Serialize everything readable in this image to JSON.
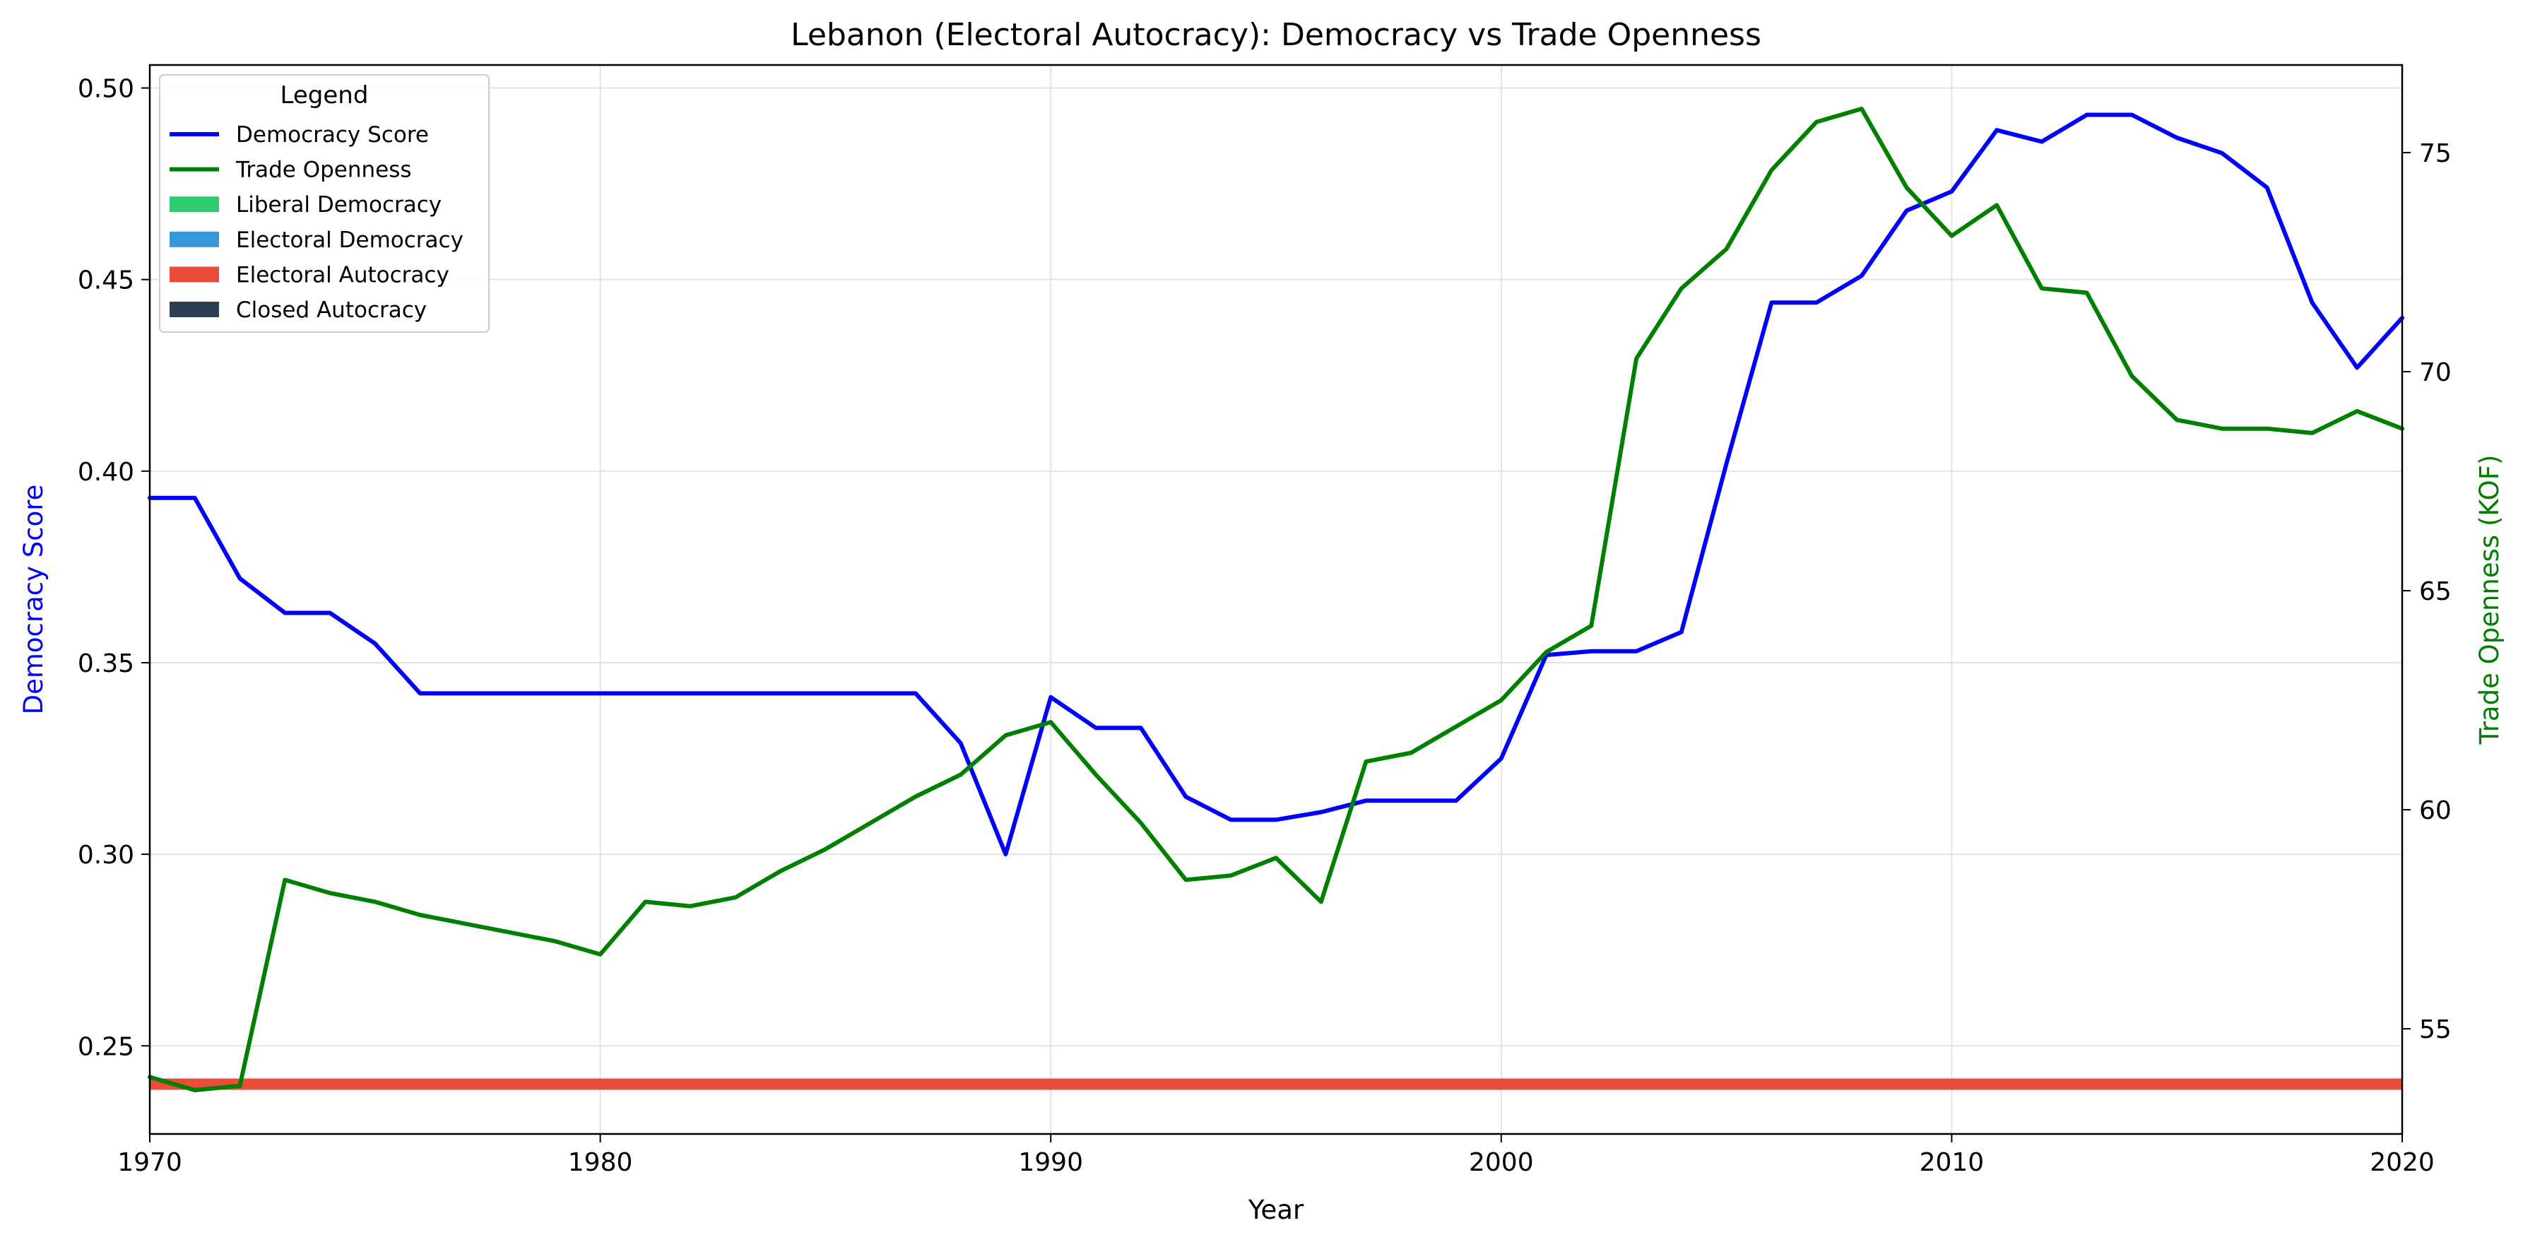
{
  "chart_data": {
    "type": "line",
    "title": "Lebanon (Electoral Autocracy): Democracy vs Trade Openness",
    "xlabel": "Year",
    "ylabel_left": "Democracy Score",
    "ylabel_right": "Trade Openness (KOF)",
    "xlim": [
      1970,
      2020
    ],
    "ylim_left": [
      0.227,
      0.506
    ],
    "ylim_right": [
      52.6,
      77.0
    ],
    "x_ticks": [
      1970,
      1980,
      1990,
      2000,
      2010,
      2020
    ],
    "y_ticks_left": [
      "0.25",
      "0.30",
      "0.35",
      "0.40",
      "0.45",
      "0.50"
    ],
    "y_ticks_right": [
      "55",
      "60",
      "65",
      "70",
      "75"
    ],
    "grid": true,
    "legend": {
      "title": "Legend",
      "placement": "top-left",
      "entries": [
        {
          "label": "Democracy Score",
          "kind": "line",
          "color": "#0000ff"
        },
        {
          "label": "Trade Openness",
          "kind": "line",
          "color": "#008000"
        },
        {
          "label": "Liberal Democracy",
          "kind": "patch",
          "color": "#2ecc71"
        },
        {
          "label": "Electoral Democracy",
          "kind": "patch",
          "color": "#3498db"
        },
        {
          "label": "Electoral Autocracy",
          "kind": "patch",
          "color": "#e74c3c"
        },
        {
          "label": "Closed Autocracy",
          "kind": "patch",
          "color": "#2c3e50"
        }
      ]
    },
    "regime_band": {
      "label": "Electoral Autocracy",
      "color": "#e74c3c",
      "x": [
        1970,
        2020
      ],
      "y": 0.24
    },
    "series": [
      {
        "name": "Democracy Score",
        "axis": "left",
        "color": "#0000ff",
        "x": [
          1970,
          1971,
          1972,
          1973,
          1974,
          1975,
          1976,
          1977,
          1978,
          1979,
          1980,
          1981,
          1982,
          1983,
          1984,
          1985,
          1986,
          1987,
          1988,
          1989,
          1990,
          1991,
          1992,
          1993,
          1994,
          1995,
          1996,
          1997,
          1998,
          1999,
          2000,
          2001,
          2002,
          2003,
          2004,
          2005,
          2006,
          2007,
          2008,
          2009,
          2010,
          2011,
          2012,
          2013,
          2014,
          2015,
          2016,
          2017,
          2018,
          2019,
          2020
        ],
        "values": [
          0.393,
          0.393,
          0.372,
          0.363,
          0.363,
          0.355,
          0.342,
          0.342,
          0.342,
          0.342,
          0.342,
          0.342,
          0.342,
          0.342,
          0.342,
          0.342,
          0.342,
          0.342,
          0.329,
          0.3,
          0.341,
          0.333,
          0.333,
          0.315,
          0.309,
          0.309,
          0.311,
          0.314,
          0.314,
          0.314,
          0.325,
          0.352,
          0.353,
          0.353,
          0.358,
          0.402,
          0.444,
          0.444,
          0.451,
          0.468,
          0.473,
          0.489,
          0.486,
          0.493,
          0.493,
          0.487,
          0.483,
          0.474,
          0.444,
          0.427,
          0.44
        ]
      },
      {
        "name": "Trade Openness",
        "axis": "right",
        "color": "#008000",
        "x": [
          1970,
          1971,
          1972,
          1973,
          1974,
          1975,
          1976,
          1977,
          1978,
          1979,
          1980,
          1981,
          1982,
          1983,
          1984,
          1985,
          1986,
          1987,
          1988,
          1989,
          1990,
          1991,
          1992,
          1993,
          1994,
          1995,
          1996,
          1997,
          1998,
          1999,
          2000,
          2001,
          2002,
          2003,
          2004,
          2005,
          2006,
          2007,
          2008,
          2009,
          2010,
          2011,
          2012,
          2013,
          2014,
          2015,
          2016,
          2017,
          2018,
          2019,
          2020
        ],
        "values": [
          53.9,
          53.6,
          53.7,
          58.4,
          58.1,
          57.9,
          57.6,
          57.4,
          57.2,
          57.0,
          56.7,
          57.9,
          57.8,
          58.0,
          58.6,
          59.1,
          59.7,
          60.3,
          60.8,
          61.7,
          62.0,
          60.8,
          59.7,
          58.4,
          58.5,
          58.9,
          57.9,
          61.1,
          61.3,
          61.9,
          62.5,
          63.6,
          64.2,
          70.3,
          71.9,
          72.8,
          74.6,
          75.7,
          76.0,
          74.2,
          73.1,
          73.8,
          71.9,
          71.8,
          69.9,
          68.9,
          68.7,
          68.7,
          68.6,
          69.1,
          68.7
        ]
      }
    ]
  }
}
